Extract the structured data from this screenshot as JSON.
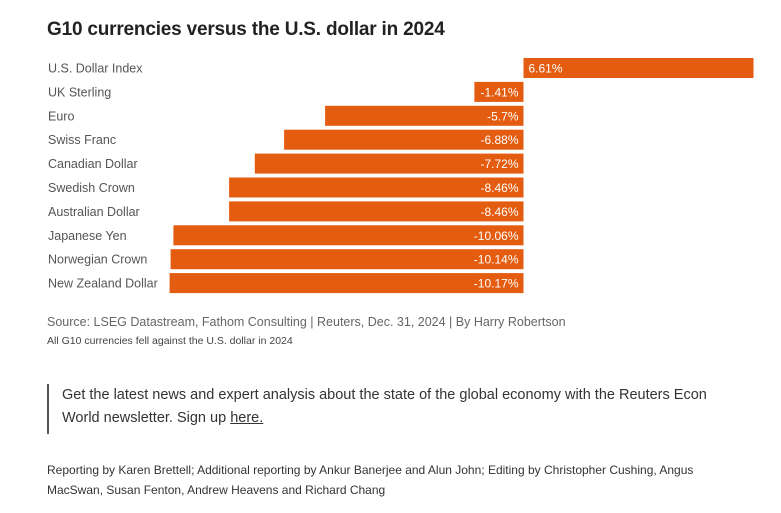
{
  "chart_data": {
    "type": "bar",
    "orientation": "horizontal",
    "title": "G10 currencies versus the U.S. dollar in 2024",
    "categories": [
      "U.S. Dollar Index",
      "UK Sterling",
      "Euro",
      "Swiss Franc",
      "Canadian Dollar",
      "Swedish Crown",
      "Australian Dollar",
      "Japanese Yen",
      "Norwegian Crown",
      "New Zealand Dollar"
    ],
    "values": [
      6.61,
      -1.41,
      -5.7,
      -6.88,
      -7.72,
      -8.46,
      -8.46,
      -10.06,
      -10.14,
      -10.17
    ],
    "value_labels": [
      "6.61%",
      "-1.41%",
      "-5.7%",
      "-6.88%",
      "-7.72%",
      "-8.46%",
      "-8.46%",
      "-10.06%",
      "-10.14%",
      "-10.17%"
    ],
    "bar_color": "#e45c0f",
    "grid": false,
    "xlabel": "",
    "ylabel": ""
  },
  "source": "Source: LSEG Datastream, Fathom Consulting | Reuters, Dec. 31, 2024 | By Harry Robertson",
  "note": "All G10 currencies fell against the U.S. dollar in 2024",
  "callout": {
    "text": "Get the latest news and expert analysis about the state of the global economy with the Reuters Econ World newsletter. Sign up ",
    "link_text": "here.",
    "border_color": "#555555"
  },
  "credits": "Reporting by Karen Brettell; Additional reporting by Ankur Banerjee and Alun John; Editing by Christopher Cushing, Angus MacSwan, Susan Fenton, Andrew Heavens and Richard Chang"
}
